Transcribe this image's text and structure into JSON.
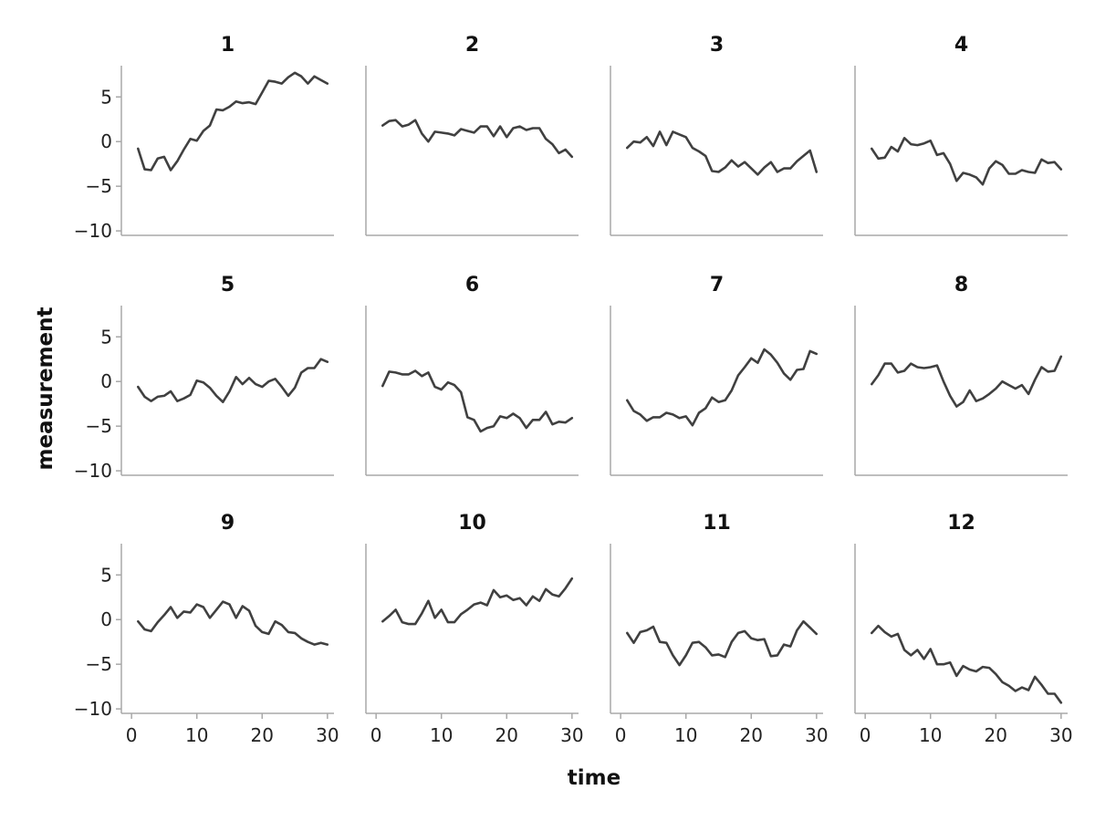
{
  "chart_data": {
    "type": "line",
    "layout": "small-multiples",
    "xlabel": "time",
    "ylabel": "measurement",
    "xlim": [
      -1,
      31
    ],
    "ylim": [
      -10.5,
      8.5
    ],
    "xticks": [
      0,
      10,
      20,
      30
    ],
    "yticks": [
      5,
      0,
      -5,
      -10
    ],
    "x_tick_labels": [
      "0",
      "10",
      "20",
      "30"
    ],
    "y_tick_labels": [
      "5",
      "0",
      "−5",
      "−10"
    ],
    "grid": false,
    "line_color": "#404040",
    "x": [
      1,
      2,
      3,
      4,
      5,
      6,
      7,
      8,
      9,
      10,
      11,
      12,
      13,
      14,
      15,
      16,
      17,
      18,
      19,
      20,
      21,
      22,
      23,
      24,
      25,
      26,
      27,
      28,
      29,
      30
    ],
    "panels": [
      {
        "title": "1",
        "values": [
          -0.8,
          -3.1,
          -3.2,
          -1.9,
          -1.7,
          -3.2,
          -2.2,
          -0.9,
          0.3,
          0.1,
          1.2,
          1.8,
          3.6,
          3.5,
          3.9,
          4.5,
          4.3,
          4.4,
          4.2,
          5.5,
          6.8,
          6.7,
          6.5,
          7.2,
          7.7,
          7.3,
          6.5,
          7.3,
          6.9,
          6.5
        ]
      },
      {
        "title": "2",
        "values": [
          1.8,
          2.3,
          2.4,
          1.7,
          1.9,
          2.4,
          0.9,
          0.0,
          1.1,
          1.0,
          0.9,
          0.7,
          1.4,
          1.2,
          1.0,
          1.7,
          1.7,
          0.6,
          1.7,
          0.5,
          1.5,
          1.7,
          1.3,
          1.5,
          1.5,
          0.3,
          -0.3,
          -1.3,
          -0.9,
          -1.7
        ]
      },
      {
        "title": "3",
        "values": [
          -0.7,
          0.0,
          -0.1,
          0.5,
          -0.5,
          1.1,
          -0.4,
          1.1,
          0.8,
          0.5,
          -0.7,
          -1.1,
          -1.6,
          -3.3,
          -3.4,
          -2.9,
          -2.1,
          -2.8,
          -2.3,
          -3.0,
          -3.7,
          -2.9,
          -2.3,
          -3.4,
          -3.0,
          -3.0,
          -2.2,
          -1.6,
          -1.0,
          -3.4
        ]
      },
      {
        "title": "4",
        "values": [
          -0.8,
          -1.9,
          -1.8,
          -0.6,
          -1.1,
          0.4,
          -0.3,
          -0.4,
          -0.2,
          0.1,
          -1.5,
          -1.3,
          -2.5,
          -4.4,
          -3.5,
          -3.7,
          -4.0,
          -4.8,
          -3.0,
          -2.2,
          -2.6,
          -3.6,
          -3.6,
          -3.2,
          -3.4,
          -3.5,
          -2.0,
          -2.4,
          -2.3,
          -3.1
        ]
      },
      {
        "title": "5",
        "values": [
          -0.6,
          -1.7,
          -2.2,
          -1.7,
          -1.6,
          -1.1,
          -2.2,
          -1.9,
          -1.5,
          0.1,
          -0.1,
          -0.7,
          -1.6,
          -2.3,
          -1.1,
          0.5,
          -0.3,
          0.4,
          -0.3,
          -0.6,
          0.0,
          0.3,
          -0.6,
          -1.6,
          -0.7,
          1.0,
          1.5,
          1.5,
          2.5,
          2.2
        ]
      },
      {
        "title": "6",
        "values": [
          -0.5,
          1.1,
          1.0,
          0.8,
          0.8,
          1.2,
          0.6,
          1.0,
          -0.6,
          -0.9,
          -0.1,
          -0.4,
          -1.2,
          -4.0,
          -4.3,
          -5.6,
          -5.2,
          -5.0,
          -3.9,
          -4.1,
          -3.6,
          -4.1,
          -5.2,
          -4.3,
          -4.3,
          -3.4,
          -4.8,
          -4.5,
          -4.6,
          -4.1
        ]
      },
      {
        "title": "7",
        "values": [
          -2.1,
          -3.3,
          -3.7,
          -4.4,
          -4.0,
          -4.0,
          -3.5,
          -3.7,
          -4.1,
          -3.9,
          -4.9,
          -3.5,
          -3.0,
          -1.8,
          -2.3,
          -2.1,
          -1.0,
          0.7,
          1.6,
          2.6,
          2.1,
          3.6,
          3.0,
          2.1,
          0.9,
          0.2,
          1.3,
          1.4,
          3.4,
          3.1
        ]
      },
      {
        "title": "8",
        "values": [
          -0.3,
          0.7,
          2.0,
          2.0,
          1.0,
          1.2,
          2.0,
          1.6,
          1.5,
          1.6,
          1.8,
          0.0,
          -1.6,
          -2.8,
          -2.3,
          -1.0,
          -2.2,
          -1.9,
          -1.4,
          -0.8,
          0.0,
          -0.4,
          -0.8,
          -0.4,
          -1.4,
          0.2,
          1.6,
          1.1,
          1.2,
          2.8
        ]
      },
      {
        "title": "9",
        "values": [
          -0.2,
          -1.1,
          -1.3,
          -0.3,
          0.5,
          1.4,
          0.2,
          0.9,
          0.8,
          1.7,
          1.4,
          0.2,
          1.1,
          2.0,
          1.7,
          0.2,
          1.5,
          1.0,
          -0.7,
          -1.4,
          -1.6,
          -0.2,
          -0.6,
          -1.4,
          -1.5,
          -2.1,
          -2.5,
          -2.8,
          -2.6,
          -2.8
        ]
      },
      {
        "title": "10",
        "values": [
          -0.2,
          0.4,
          1.1,
          -0.3,
          -0.5,
          -0.5,
          0.7,
          2.1,
          0.2,
          1.1,
          -0.3,
          -0.3,
          0.6,
          1.1,
          1.7,
          1.9,
          1.6,
          3.3,
          2.5,
          2.7,
          2.2,
          2.4,
          1.6,
          2.6,
          2.1,
          3.4,
          2.8,
          2.6,
          3.5,
          4.6
        ]
      },
      {
        "title": "11",
        "values": [
          -1.5,
          -2.6,
          -1.4,
          -1.2,
          -0.8,
          -2.5,
          -2.6,
          -4.0,
          -5.1,
          -4.0,
          -2.6,
          -2.5,
          -3.1,
          -4.0,
          -3.9,
          -4.2,
          -2.5,
          -1.5,
          -1.3,
          -2.1,
          -2.3,
          -2.2,
          -4.1,
          -4.0,
          -2.8,
          -3.0,
          -1.2,
          -0.2,
          -0.9,
          -1.6
        ]
      },
      {
        "title": "12",
        "values": [
          -1.5,
          -0.7,
          -1.4,
          -1.9,
          -1.6,
          -3.4,
          -4.0,
          -3.4,
          -4.4,
          -3.3,
          -5.0,
          -5.0,
          -4.8,
          -6.3,
          -5.2,
          -5.6,
          -5.8,
          -5.3,
          -5.4,
          -6.1,
          -7.0,
          -7.4,
          -8.0,
          -7.6,
          -7.9,
          -6.4,
          -7.3,
          -8.3,
          -8.3,
          -9.3
        ]
      }
    ]
  }
}
